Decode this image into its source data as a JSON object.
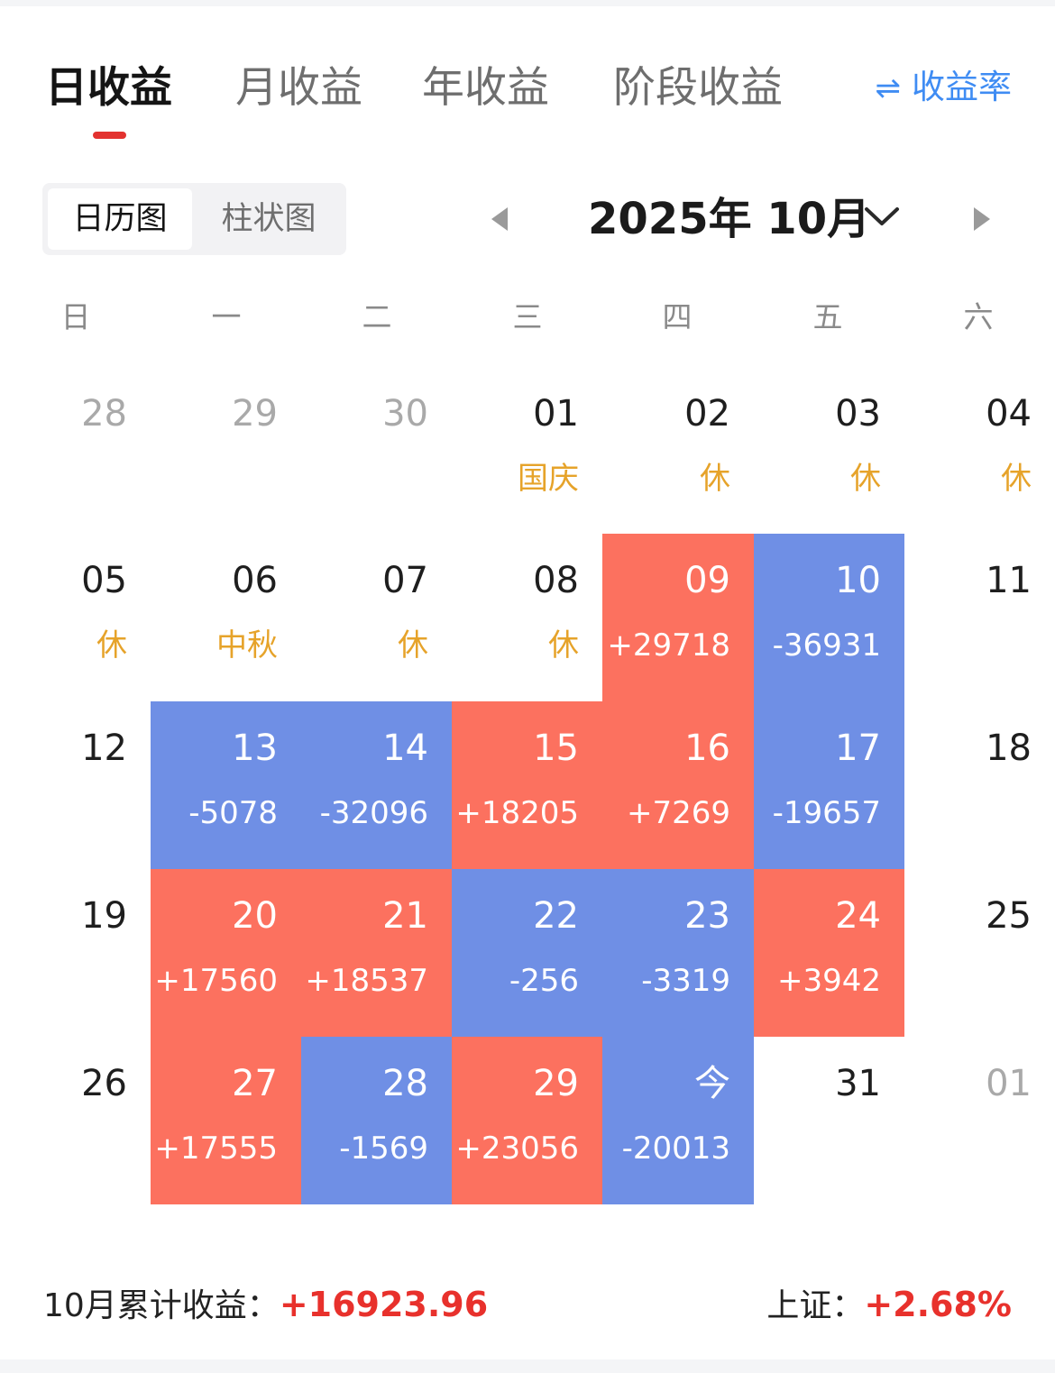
{
  "tabs": [
    {
      "label": "日收益",
      "active": true
    },
    {
      "label": "月收益",
      "active": false
    },
    {
      "label": "年收益",
      "active": false
    },
    {
      "label": "阶段收益",
      "active": false
    }
  ],
  "rate_toggle": {
    "icon": "swap-arrows-icon",
    "label": "收益率",
    "color": "#3f8cf3"
  },
  "view_switch": {
    "calendar_label": "日历图",
    "bar_label": "柱状图",
    "active": "calendar"
  },
  "month_nav": {
    "title": "2025年 10月"
  },
  "weekdays": [
    "日",
    "一",
    "二",
    "三",
    "四",
    "五",
    "六"
  ],
  "colors": {
    "gain": "#fc715f",
    "loss": "#6f8fe5",
    "holiday_note": "#e6a32a",
    "accent_red": "#e3322f"
  },
  "calendar": {
    "weeks": [
      [
        {
          "day": "28",
          "other": true
        },
        {
          "day": "29",
          "other": true
        },
        {
          "day": "30",
          "other": true
        },
        {
          "day": "01",
          "note": "国庆"
        },
        {
          "day": "02",
          "note": "休"
        },
        {
          "day": "03",
          "note": "休"
        },
        {
          "day": "04",
          "note": "休"
        }
      ],
      [
        {
          "day": "05",
          "note": "休"
        },
        {
          "day": "06",
          "note": "中秋"
        },
        {
          "day": "07",
          "note": "休"
        },
        {
          "day": "08",
          "note": "休"
        },
        {
          "day": "09",
          "pnl": "+29718",
          "dir": "up"
        },
        {
          "day": "10",
          "pnl": "-36931",
          "dir": "down"
        },
        {
          "day": "11"
        }
      ],
      [
        {
          "day": "12"
        },
        {
          "day": "13",
          "pnl": "-5078",
          "dir": "down"
        },
        {
          "day": "14",
          "pnl": "-32096",
          "dir": "down"
        },
        {
          "day": "15",
          "pnl": "+18205",
          "dir": "up"
        },
        {
          "day": "16",
          "pnl": "+7269",
          "dir": "up"
        },
        {
          "day": "17",
          "pnl": "-19657",
          "dir": "down"
        },
        {
          "day": "18"
        }
      ],
      [
        {
          "day": "19"
        },
        {
          "day": "20",
          "pnl": "+17560",
          "dir": "up"
        },
        {
          "day": "21",
          "pnl": "+18537",
          "dir": "up"
        },
        {
          "day": "22",
          "pnl": "-256",
          "dir": "down"
        },
        {
          "day": "23",
          "pnl": "-3319",
          "dir": "down"
        },
        {
          "day": "24",
          "pnl": "+3942",
          "dir": "up"
        },
        {
          "day": "25"
        }
      ],
      [
        {
          "day": "26"
        },
        {
          "day": "27",
          "pnl": "+17555",
          "dir": "up"
        },
        {
          "day": "28",
          "pnl": "-1569",
          "dir": "down"
        },
        {
          "day": "29",
          "pnl": "+23056",
          "dir": "up"
        },
        {
          "day": "今",
          "pnl": "-20013",
          "dir": "down"
        },
        {
          "day": "31"
        },
        {
          "day": "01",
          "other": true
        }
      ]
    ]
  },
  "footer": {
    "cumulative_label": "10月累计收益：",
    "cumulative_value": "+16923.96",
    "index_label": "上证：",
    "index_value": "+2.68%"
  }
}
